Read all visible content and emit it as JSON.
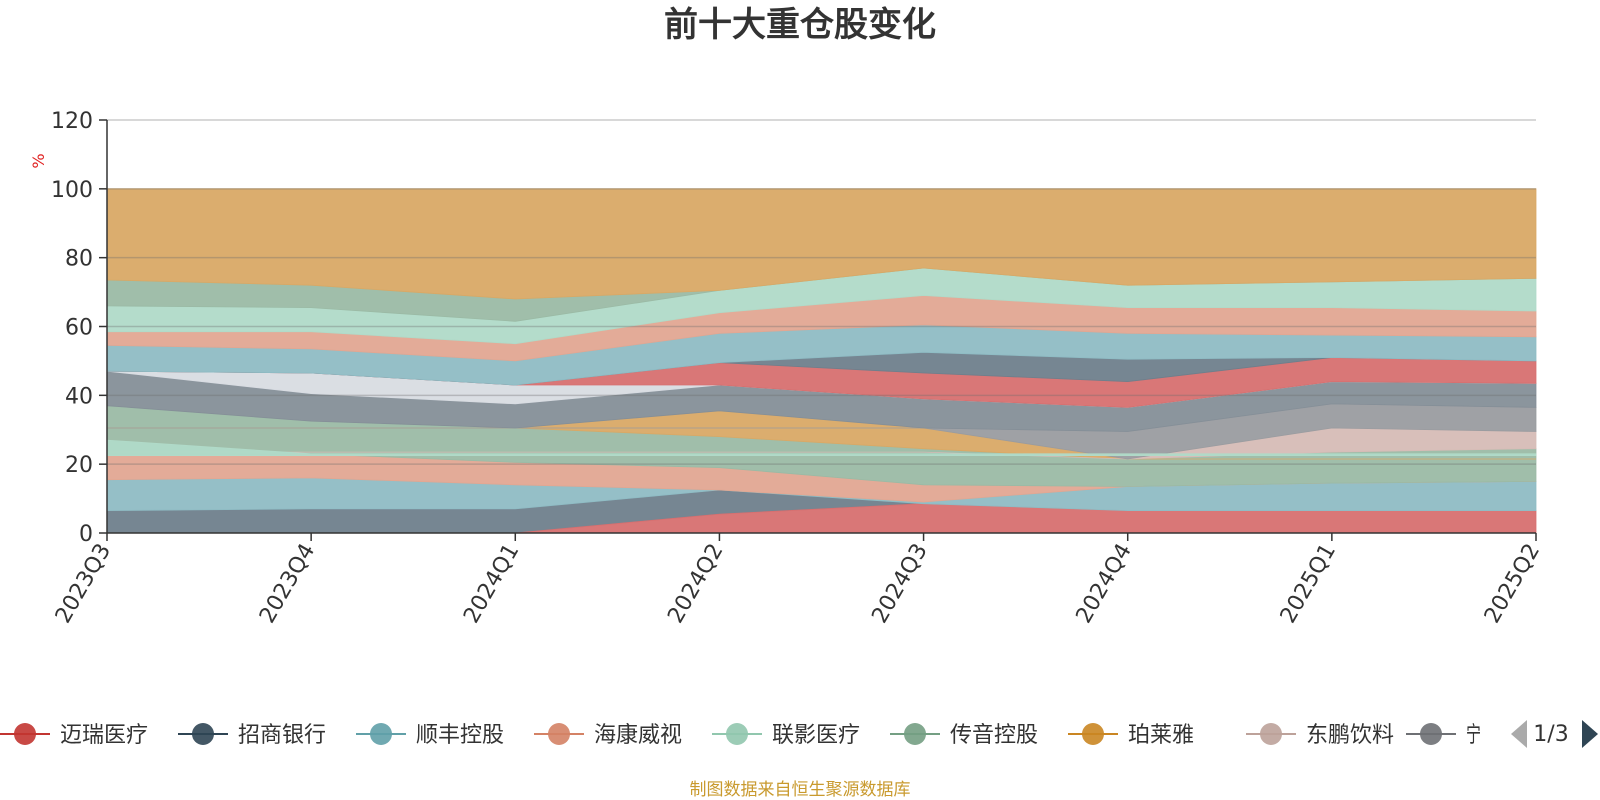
{
  "chart_data": {
    "type": "area",
    "title": "前十大重仓股变化",
    "y_unit": "%",
    "ylim": [
      0,
      120
    ],
    "y_ticks": [
      "0",
      "20",
      "40",
      "60",
      "80",
      "100",
      "120"
    ],
    "categories": [
      "2023Q3",
      "2023Q4",
      "2024Q1",
      "2024Q2",
      "2024Q3",
      "2024Q4",
      "2025Q1",
      "2025Q2"
    ],
    "bands": [
      {
        "color": "#6f7f8c",
        "lower": [
          0,
          0,
          0,
          5.5,
          8.5,
          6.5,
          6.5,
          6.5
        ],
        "upper": [
          6.5,
          7,
          7,
          12.5,
          8.5,
          6.5,
          6.5,
          6.5
        ]
      },
      {
        "color": "#d77070",
        "lower": [
          0,
          0,
          0,
          0,
          0,
          0,
          0,
          0
        ],
        "upper": [
          0,
          0,
          0,
          5.5,
          8.5,
          6.5,
          6.5,
          6.5
        ]
      },
      {
        "color": "#8fbcc4",
        "lower": [
          6.5,
          7,
          7,
          12.5,
          8.5,
          6.5,
          6.5,
          6.5
        ],
        "upper": [
          15.5,
          16,
          14,
          12.5,
          9,
          13.5,
          14.5,
          15
        ]
      },
      {
        "color": "#e2a792",
        "lower": [
          15.5,
          16,
          14,
          12.5,
          9,
          13.5,
          14.5,
          15
        ],
        "upper": [
          22.5,
          23,
          20.5,
          19,
          14,
          13.5,
          14.5,
          15
        ]
      },
      {
        "color": "#9bbaa5",
        "lower": [
          22.5,
          23,
          20.5,
          19,
          14,
          13.5,
          14.5,
          15
        ],
        "upper": [
          37,
          32.5,
          30.5,
          28,
          24.5,
          21.5,
          23.5,
          24.5
        ]
      },
      {
        "color": "#d9a966",
        "lower": [
          30.5,
          30.5,
          30.5,
          28,
          24.5,
          21.5,
          21.5,
          21.5
        ],
        "upper": [
          30.5,
          30.5,
          30.5,
          35.5,
          30.5,
          21.5,
          21.5,
          21.5
        ]
      },
      {
        "color": "#d6bcb6",
        "lower": [
          23.5,
          23.5,
          23.5,
          23.5,
          23.5,
          21.5,
          23.5,
          24.5
        ],
        "upper": [
          23.5,
          23.5,
          23.5,
          23.5,
          23.5,
          21.5,
          30.5,
          29.5
        ]
      },
      {
        "color": "#9a9ca0",
        "lower": [
          30.5,
          30.5,
          30.5,
          30.5,
          30.5,
          21.5,
          30.5,
          29.5
        ],
        "upper": [
          30.5,
          30.5,
          30.5,
          30.5,
          30.5,
          29.5,
          37.5,
          36.5
        ]
      },
      {
        "color": "#858f98",
        "lower": [
          37,
          32.5,
          30.5,
          35.5,
          30.5,
          29.5,
          37.5,
          36.5
        ],
        "upper": [
          47,
          40.5,
          37.5,
          43,
          39,
          36.5,
          44,
          43.5
        ]
      },
      {
        "color": "#d8dce2",
        "lower": [
          47,
          40.5,
          37.5,
          43,
          39,
          36.5,
          44,
          43.5
        ],
        "upper": [
          47,
          46.5,
          43,
          43,
          39,
          36.5,
          44,
          43.5
        ]
      },
      {
        "color": "#d77070",
        "lower": [
          47,
          46.5,
          43,
          43,
          39,
          36.5,
          44,
          43.5
        ],
        "upper": [
          47,
          46.5,
          43,
          49.5,
          46.5,
          44,
          51,
          50
        ]
      },
      {
        "color": "#6f7f8c",
        "lower": [
          47,
          46.5,
          43,
          49.5,
          46.5,
          44,
          51,
          50
        ],
        "upper": [
          47,
          46.5,
          43,
          49.5,
          52.5,
          50.5,
          51,
          50
        ]
      },
      {
        "color": "#8fbcc4",
        "lower": [
          47,
          46.5,
          43,
          49.5,
          52.5,
          50.5,
          51,
          50
        ],
        "upper": [
          54.5,
          53.5,
          50,
          58,
          60.5,
          58,
          57.5,
          57
        ]
      },
      {
        "color": "#e2a792",
        "lower": [
          54.5,
          53.5,
          50,
          58,
          60.5,
          58,
          57.5,
          57
        ],
        "upper": [
          58.5,
          58.5,
          55,
          64,
          69,
          65.5,
          65.5,
          64.5
        ]
      },
      {
        "color": "#b0dac8",
        "lower": [
          58.5,
          58.5,
          55,
          64,
          69,
          65.5,
          65.5,
          64.5
        ],
        "upper": [
          66,
          65.5,
          61.5,
          70.5,
          77,
          72,
          73,
          74
        ]
      },
      {
        "color": "#9bbaa5",
        "lower": [
          66,
          65.5,
          61.5,
          70.5,
          77,
          72,
          73,
          74
        ],
        "upper": [
          73.5,
          72,
          68,
          70.5,
          77,
          72,
          73,
          74
        ]
      },
      {
        "color": "#d9a966",
        "lower": [
          73.5,
          72,
          68,
          70.5,
          77,
          72,
          73,
          74
        ],
        "upper": [
          100,
          100,
          100,
          100,
          100,
          100,
          100,
          100
        ]
      },
      {
        "color": "#b0dac8",
        "lower": [
          22.5,
          22.5,
          22.5,
          22.5,
          22.5,
          22.5,
          22.5,
          22.5
        ],
        "upper": [
          27,
          23,
          23,
          23,
          23,
          23,
          23,
          23
        ]
      }
    ],
    "legend": [
      {
        "name": "迈瑞医疗",
        "color": "#c23531"
      },
      {
        "name": "招商银行",
        "color": "#2f4554"
      },
      {
        "name": "顺丰控股",
        "color": "#61a0a8"
      },
      {
        "name": "海康威视",
        "color": "#d48265"
      },
      {
        "name": "联影医疗",
        "color": "#91c7ae"
      },
      {
        "name": "传音控股",
        "color": "#749f83"
      },
      {
        "name": "珀莱雅",
        "color": "#ca8622"
      },
      {
        "name": "东鹏饮料",
        "color": "#bda29a"
      },
      {
        "name": "宁德",
        "color": "#6e7074"
      }
    ],
    "grid": true,
    "legend_position": "bottom"
  },
  "legend_pager": "1/3",
  "source_note": "制图数据来自恒生聚源数据库"
}
